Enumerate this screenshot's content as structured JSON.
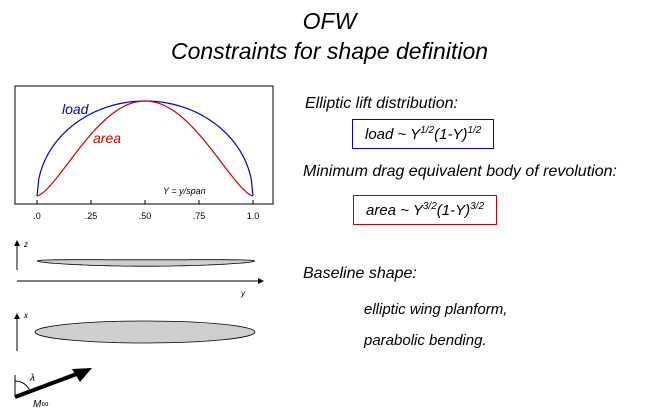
{
  "title": "OFW",
  "subtitle": "Constraints for shape definition",
  "colors": {
    "load": "#0000cc",
    "area": "#cc0000",
    "fill": "#cfcfcf"
  },
  "chart_data": {
    "type": "line",
    "x": [
      0,
      0.25,
      0.5,
      0.75,
      1.0
    ],
    "xticks": [
      ".0",
      ".25",
      ".50",
      ".75",
      "1.0"
    ],
    "xlim": [
      0,
      1.0
    ],
    "series": [
      {
        "name": "load",
        "formula": "Y^(1/2)(1-Y)^(1/2)",
        "values": [
          0,
          0.866,
          1.0,
          0.866,
          0
        ]
      },
      {
        "name": "area",
        "formula": "Y^(3/2)(1-Y)^(3/2)",
        "values": [
          0,
          0.65,
          1.0,
          0.65,
          0
        ]
      }
    ],
    "annotation": "Y = y/span",
    "grid": false
  },
  "views": {
    "front": {
      "vertical_axis": "z",
      "horizontal_axis": "y"
    },
    "top": {
      "vertical_axis": "x"
    },
    "flow": {
      "angle_label": "λ",
      "mach_label": "M∞"
    }
  },
  "text": {
    "elliptic_heading": "Elliptic lift distribution:",
    "load_formula": {
      "lhs": "load ~ Y",
      "e1": "1/2",
      "mid": "(1-Y)",
      "e2": "1/2"
    },
    "min_drag_heading": "Minimum drag equivalent body of revolution:",
    "area_formula": {
      "lhs": "area ~ Y",
      "e1": "3/2",
      "mid": "(1-Y)",
      "e2": "3/2"
    },
    "baseline_heading": "Baseline shape:",
    "baseline_items": [
      "elliptic wing planform,",
      "parabolic bending."
    ]
  }
}
